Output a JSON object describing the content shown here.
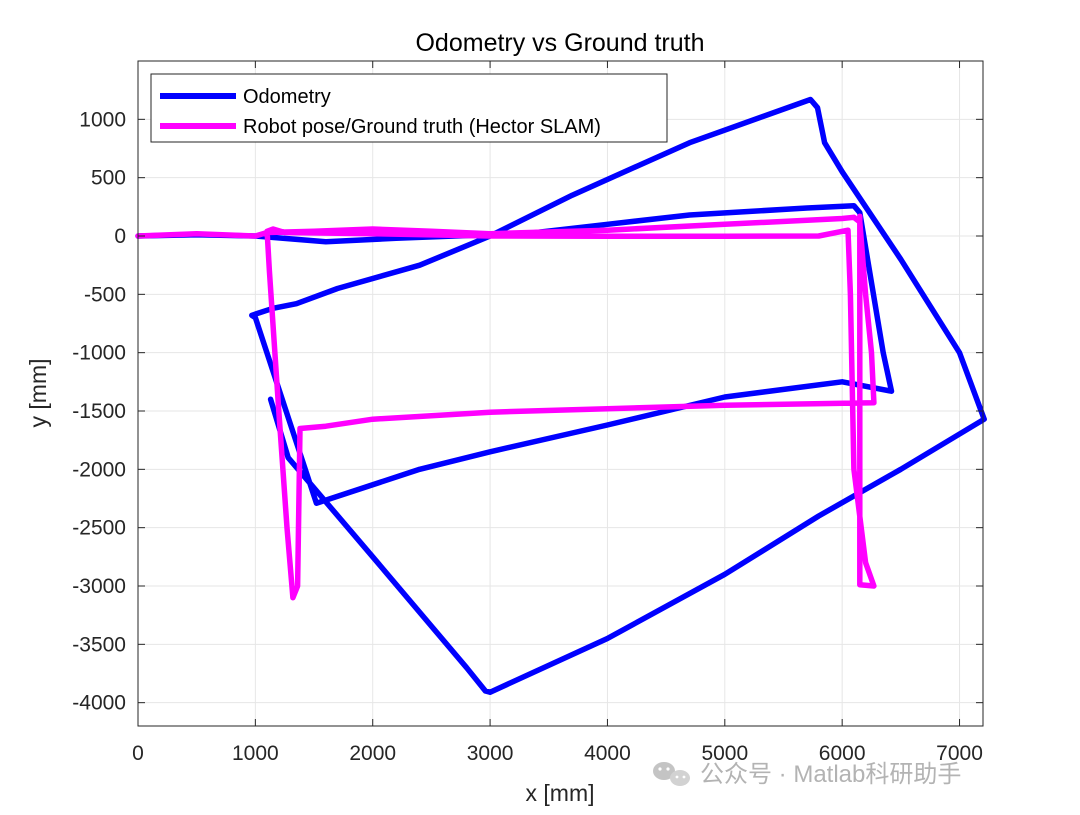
{
  "chart_data": {
    "type": "line",
    "title": "Odometry vs Ground truth",
    "xlabel": "x [mm]",
    "ylabel": "y [mm]",
    "xlim": [
      0,
      7200
    ],
    "ylim": [
      -4200,
      1500
    ],
    "xticks": [
      0,
      1000,
      2000,
      3000,
      4000,
      5000,
      6000,
      7000
    ],
    "yticks": [
      1000,
      500,
      0,
      -500,
      -1000,
      -1500,
      -2000,
      -2500,
      -3000,
      -3500,
      -4000
    ],
    "xtick_labels": [
      "0",
      "1000",
      "2000",
      "3000",
      "4000",
      "5000",
      "6000",
      "7000"
    ],
    "ytick_labels": [
      "1000",
      "500",
      "0",
      "-500",
      "-1000",
      "-1500",
      "-2000",
      "-2500",
      "-3000",
      "-3500",
      "-4000"
    ],
    "grid": true,
    "legend_position": "top-left",
    "series": [
      {
        "name": "Odometry",
        "color": "#0000ff",
        "x": [
          0,
          500,
          1000,
          1600,
          2200,
          2700,
          3300,
          4000,
          4700,
          5200,
          5700,
          6100,
          6150,
          6250,
          6350,
          6420,
          6000,
          5000,
          4000,
          3000,
          2400,
          1520,
          1000,
          970,
          1150,
          1350,
          1700,
          2400,
          3000,
          3700,
          4700,
          5730,
          5790,
          5850,
          6000,
          6500,
          7000,
          7210,
          6500,
          5800,
          5000,
          4000,
          3000,
          2960,
          2800,
          2000,
          1280,
          1130
        ],
        "y": [
          0,
          10,
          0,
          -50,
          -20,
          0,
          20,
          100,
          180,
          210,
          240,
          260,
          200,
          -400,
          -1000,
          -1330,
          -1250,
          -1380,
          -1620,
          -1850,
          -2000,
          -2290,
          -700,
          -680,
          -620,
          -580,
          -450,
          -250,
          0,
          350,
          800,
          1170,
          1100,
          800,
          550,
          -200,
          -1000,
          -1570,
          -2000,
          -2400,
          -2900,
          -3450,
          -3910,
          -3900,
          -3700,
          -2750,
          -1900,
          -1400
        ]
      },
      {
        "name": "Robot pose/Ground truth (Hector SLAM)",
        "color": "#ff00ff",
        "x": [
          0,
          500,
          1000,
          1100,
          1500,
          2000,
          2500,
          3000,
          4000,
          5000,
          6000,
          6100,
          6150,
          6200,
          6250,
          6270,
          5000,
          4000,
          3000,
          2000,
          1600,
          1380,
          1360,
          1320,
          1270,
          1200,
          1120,
          1100,
          1150,
          1250,
          2000,
          3000,
          4000,
          5000,
          5800,
          6050,
          6070,
          6100,
          6200,
          6270,
          6150,
          6150
        ],
        "y": [
          0,
          20,
          0,
          30,
          40,
          60,
          40,
          20,
          50,
          100,
          150,
          160,
          120,
          -500,
          -1000,
          -1430,
          -1450,
          -1480,
          -1510,
          -1570,
          -1630,
          -1650,
          -3000,
          -3100,
          -2500,
          -1500,
          -300,
          40,
          60,
          30,
          20,
          0,
          -2,
          -2,
          0,
          50,
          -500,
          -2000,
          -2800,
          -3000,
          -2990,
          170
        ]
      }
    ]
  },
  "watermark": {
    "icon": "wechat-icon",
    "text": "公众号 · Matlab科研助手"
  }
}
